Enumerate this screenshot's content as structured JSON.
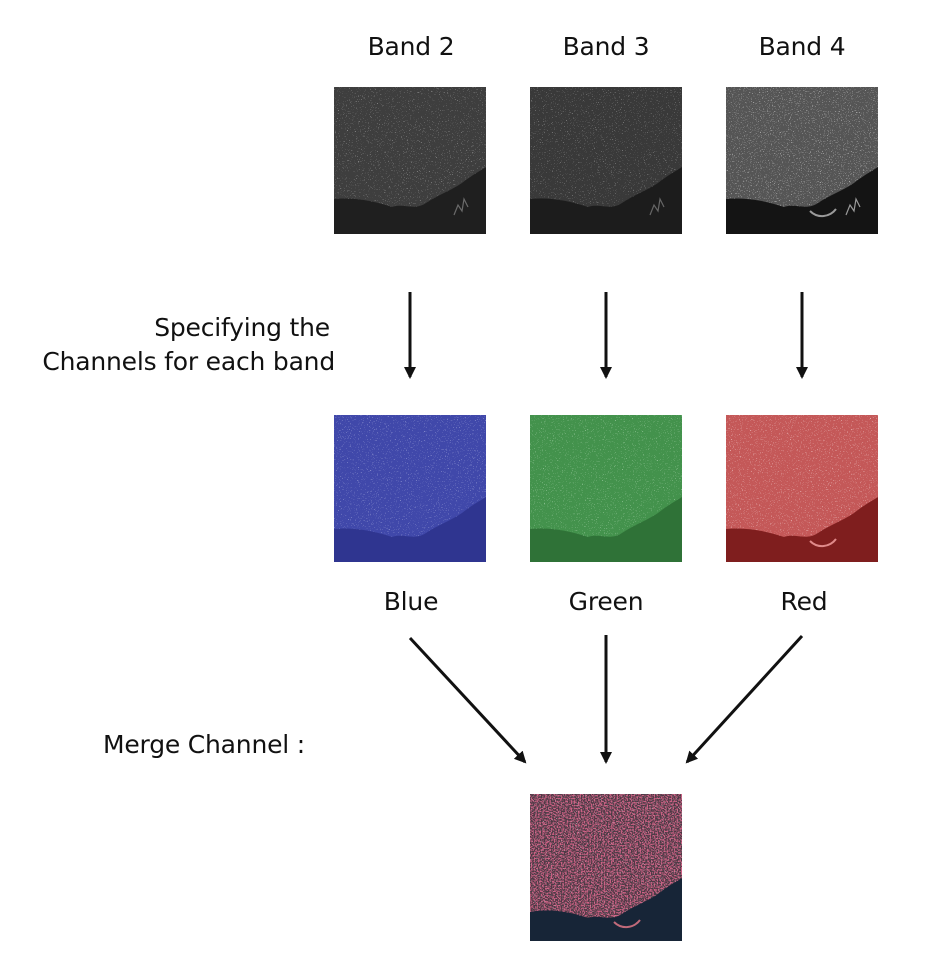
{
  "bands": [
    {
      "label": "Band 2",
      "channel": "Blue"
    },
    {
      "label": "Band 3",
      "channel": "Green"
    },
    {
      "label": "Band 4",
      "channel": "Red"
    }
  ],
  "step_label_line1": "Specifying the",
  "step_label_line2": "Channels for each band",
  "merge_label": "Merge Channel :",
  "colors": {
    "band_gray": "#3a3a3a",
    "blue": "#3c44a6",
    "green": "#3f8c47",
    "red": "#bf5252",
    "merge_land": "#5d3d48",
    "merge_water": "#182638",
    "arrow": "#111111"
  }
}
